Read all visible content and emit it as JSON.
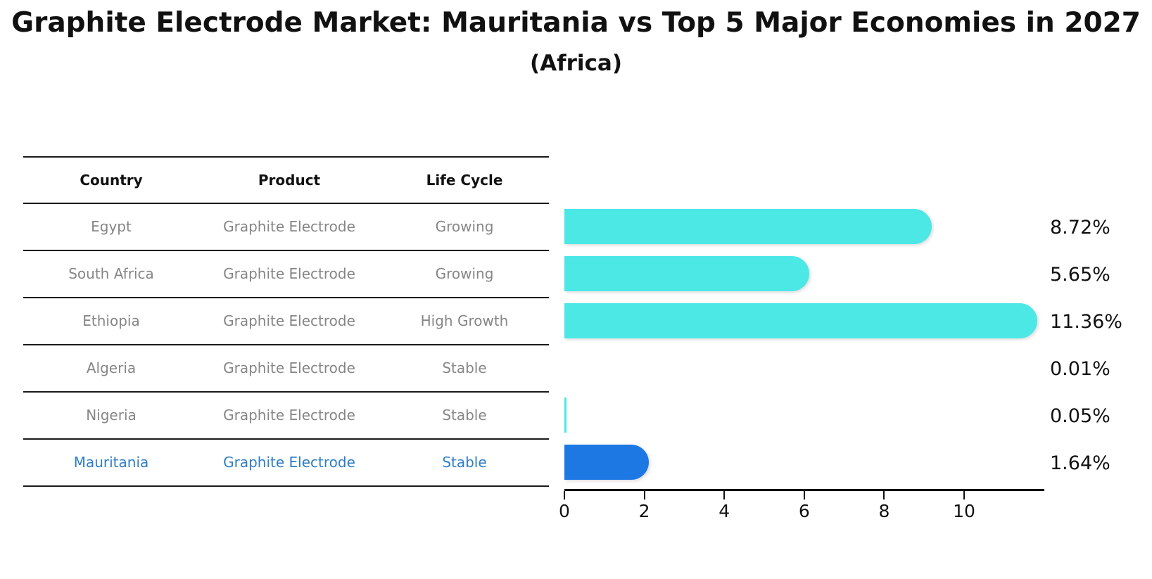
{
  "title": "Graphite Electrode Market: Mauritania vs Top 5 Major Economies in 2027",
  "subtitle": "(Africa)",
  "table": {
    "headers": [
      "Country",
      "Product",
      "Life Cycle"
    ],
    "rows": [
      {
        "country": "Egypt",
        "product": "Graphite Electrode",
        "life_cycle": "Growing",
        "highlight": false
      },
      {
        "country": "South Africa",
        "product": "Graphite Electrode",
        "life_cycle": "Growing",
        "highlight": false
      },
      {
        "country": "Ethiopia",
        "product": "Graphite Electrode",
        "life_cycle": "High Growth",
        "highlight": false
      },
      {
        "country": "Algeria",
        "product": "Graphite Electrode",
        "life_cycle": "Stable",
        "highlight": false
      },
      {
        "country": "Nigeria",
        "product": "Graphite Electrode",
        "life_cycle": "Stable",
        "highlight": false
      },
      {
        "country": "Mauritania",
        "product": "Graphite Electrode",
        "life_cycle": "Stable",
        "highlight": true
      }
    ]
  },
  "chart_data": {
    "type": "bar",
    "orientation": "horizontal",
    "categories": [
      "Egypt",
      "South Africa",
      "Ethiopia",
      "Algeria",
      "Nigeria",
      "Mauritania"
    ],
    "values": [
      8.72,
      5.65,
      11.36,
      0.01,
      0.05,
      1.64
    ],
    "value_labels": [
      "8.72%",
      "5.65%",
      "11.36%",
      "0.01%",
      "0.05%",
      "1.64%"
    ],
    "x_ticks": [
      "0",
      "2",
      "4",
      "6",
      "8",
      "10"
    ],
    "x_tick_values": [
      0,
      2,
      4,
      6,
      8,
      10
    ],
    "xlim": [
      0,
      12
    ],
    "grid": false,
    "legend": "none",
    "highlight_category": "Mauritania",
    "colors": {
      "bar_default": "#4BE8E6",
      "bar_highlight": "#1E78E4",
      "highlight_text": "#2E7EC6",
      "row_text": "#868686",
      "text": "#111111"
    }
  }
}
